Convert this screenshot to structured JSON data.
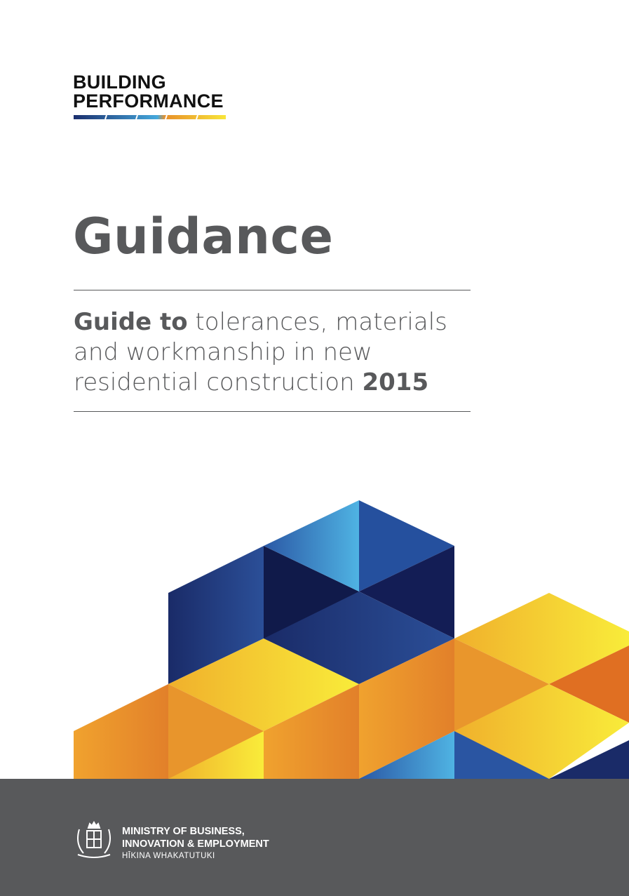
{
  "brand": {
    "line1": "BUILDING",
    "line2": "PERFORMANCE"
  },
  "title": "Guidance",
  "subtitle": {
    "bold_prefix": "Guide to",
    "text": " tolerances, materials and workmanship in new residential construction ",
    "year": "2015"
  },
  "footer": {
    "ministry_line1": "MINISTRY OF BUSINESS,",
    "ministry_line2": "INNOVATION & EMPLOYMENT",
    "maori_name": "HĪKINA WHAKATUTUKI"
  },
  "colors": {
    "navy": "#1b2f6e",
    "blue": "#2a5aa8",
    "light_blue": "#45a8dc",
    "yellow": "#f8e53a",
    "orange": "#e8902a",
    "grey": "#58595b"
  }
}
